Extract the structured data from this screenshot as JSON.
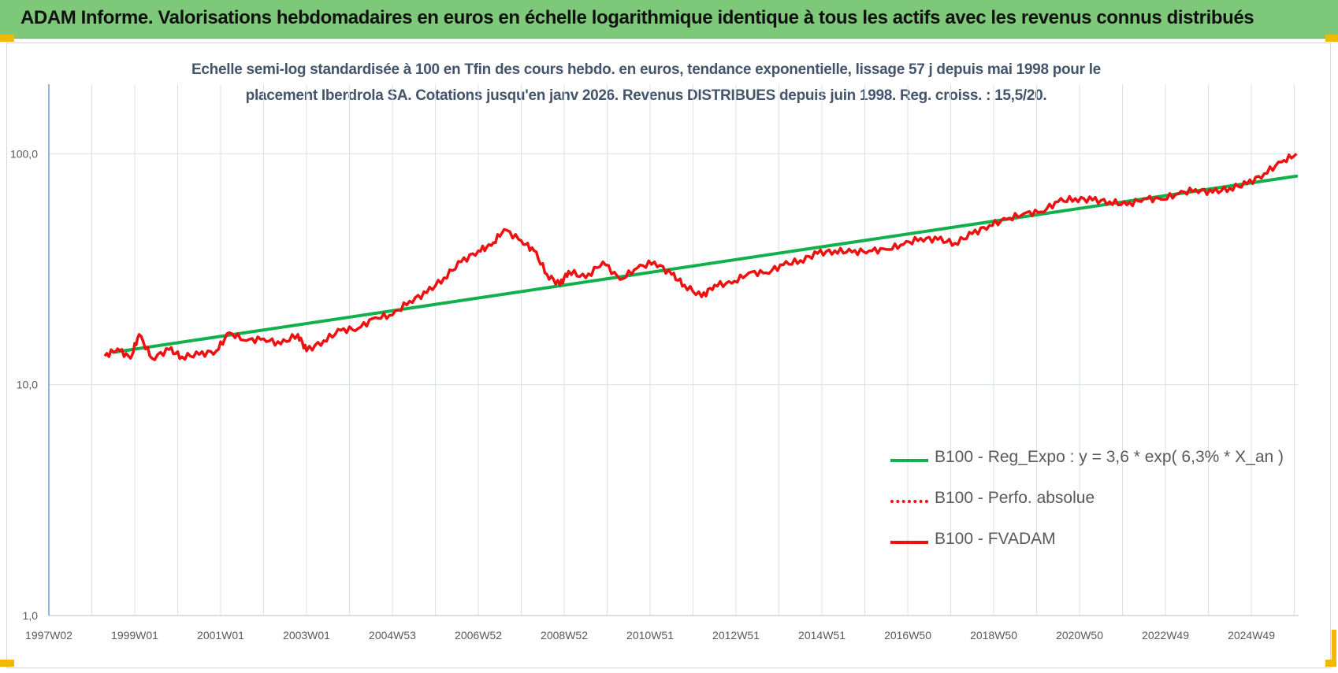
{
  "header": {
    "title": "ADAM Informe. Valorisations hebdomadaires en euros en échelle logarithmique identique à tous les actifs avec les revenus connus distribués"
  },
  "colors": {
    "header_bg": "#7ec87a",
    "trend": "#12b04a",
    "fvadam": "#ee1111",
    "perfo": "#ee1111",
    "corner": "#f5b800",
    "title_text": "#44546a"
  },
  "chart_data": {
    "type": "line",
    "title": "Echelle semi-log standardisée à 100 en Tfin des cours hebdo. en euros, tendance exponentielle, lissage 57 j depuis mai 1998 pour le placement Iberdrola SA. Cotations jusqu'en janv 2026. Revenus DISTRIBUES depuis juin 1998. Reg. croiss. : 15,5/20.",
    "title_lines": [
      "Echelle semi-log standardisée à 100 en Tfin des cours hebdo. en euros, tendance exponentielle, lissage 57 j depuis mai 1998 pour le",
      "placement Iberdrola SA. Cotations jusqu'en janv 2026. Revenus DISTRIBUES depuis juin 1998. Reg. croiss. : 15,5/20."
    ],
    "y_scale": "log",
    "ylim": [
      1,
      200
    ],
    "y_ticks": [
      "1,0",
      "10,0",
      "100,0"
    ],
    "y_tick_values": [
      1,
      10,
      100
    ],
    "x_ticks": [
      "1997W02",
      "1999W01",
      "2001W01",
      "2003W01",
      "2004W53",
      "2006W52",
      "2008W52",
      "2010W51",
      "2012W51",
      "2014W51",
      "2016W50",
      "2018W50",
      "2020W50",
      "2022W49",
      "2024W49"
    ],
    "x_tick_years": [
      1997.0,
      1999.0,
      2001.0,
      2003.0,
      2005.0,
      2007.0,
      2009.0,
      2011.0,
      2013.0,
      2015.0,
      2017.0,
      2019.0,
      2021.0,
      2023.0,
      2025.0
    ],
    "xlim": [
      1997.0,
      2026.1
    ],
    "grid": true,
    "legend_position": "bottom-right",
    "series": [
      {
        "name": "B100 - Reg_Expo : y = 3,6 * exp( 6,3% *  X_an )",
        "kind": "trend",
        "style": "solid-thick",
        "x": [
          1998.5,
          2026.05
        ],
        "y": [
          13.8,
          80.0
        ]
      },
      {
        "name": "B100 - Perfo. absolue",
        "kind": "perfo",
        "style": "dotted",
        "x": [],
        "y": []
      },
      {
        "name": "B100 - FVADAM",
        "kind": "fvadam",
        "style": "solid-thick",
        "x": [
          1998.3,
          1998.6,
          1998.9,
          1999.1,
          1999.4,
          1999.8,
          2000.1,
          2000.5,
          2000.9,
          2001.2,
          2001.6,
          2002.0,
          2002.4,
          2002.8,
          2003.0,
          2003.4,
          2003.8,
          2004.2,
          2004.6,
          2005.0,
          2005.4,
          2005.8,
          2006.2,
          2006.6,
          2007.0,
          2007.3,
          2007.6,
          2008.0,
          2008.3,
          2008.6,
          2008.9,
          2009.1,
          2009.5,
          2009.9,
          2010.3,
          2010.7,
          2011.1,
          2011.5,
          2011.8,
          2012.2,
          2012.5,
          2012.9,
          2013.3,
          2013.7,
          2014.1,
          2014.5,
          2014.9,
          2015.3,
          2015.7,
          2016.1,
          2016.5,
          2016.9,
          2017.3,
          2017.7,
          2018.1,
          2018.5,
          2018.9,
          2019.3,
          2019.7,
          2020.1,
          2020.5,
          2020.9,
          2021.3,
          2021.7,
          2022.1,
          2022.5,
          2022.9,
          2023.3,
          2023.7,
          2024.1,
          2024.5,
          2024.9,
          2025.3,
          2025.7,
          2026.05
        ],
        "y": [
          13.3,
          14.3,
          13.0,
          16.5,
          13.0,
          14.2,
          13.2,
          13.5,
          14.0,
          16.8,
          15.5,
          15.8,
          15.0,
          16.5,
          14.0,
          15.5,
          17.2,
          17.5,
          19.5,
          20.0,
          23.0,
          25.0,
          29.0,
          34.0,
          38.0,
          40.0,
          47.0,
          42.0,
          38.0,
          30.0,
          27.0,
          31.0,
          29.0,
          34.0,
          28.5,
          32.0,
          34.0,
          30.0,
          27.0,
          24.0,
          27.0,
          27.5,
          30.5,
          30.5,
          33.0,
          34.5,
          37.0,
          38.0,
          37.5,
          38.0,
          38.5,
          40.5,
          43.0,
          42.5,
          41.0,
          45.0,
          49.0,
          52.0,
          55.0,
          56.0,
          62.0,
          64.0,
          63.0,
          62.0,
          60.0,
          64.0,
          63.5,
          67.0,
          70.0,
          68.0,
          71.0,
          74.0,
          82.0,
          92.0,
          100.0
        ]
      }
    ]
  }
}
